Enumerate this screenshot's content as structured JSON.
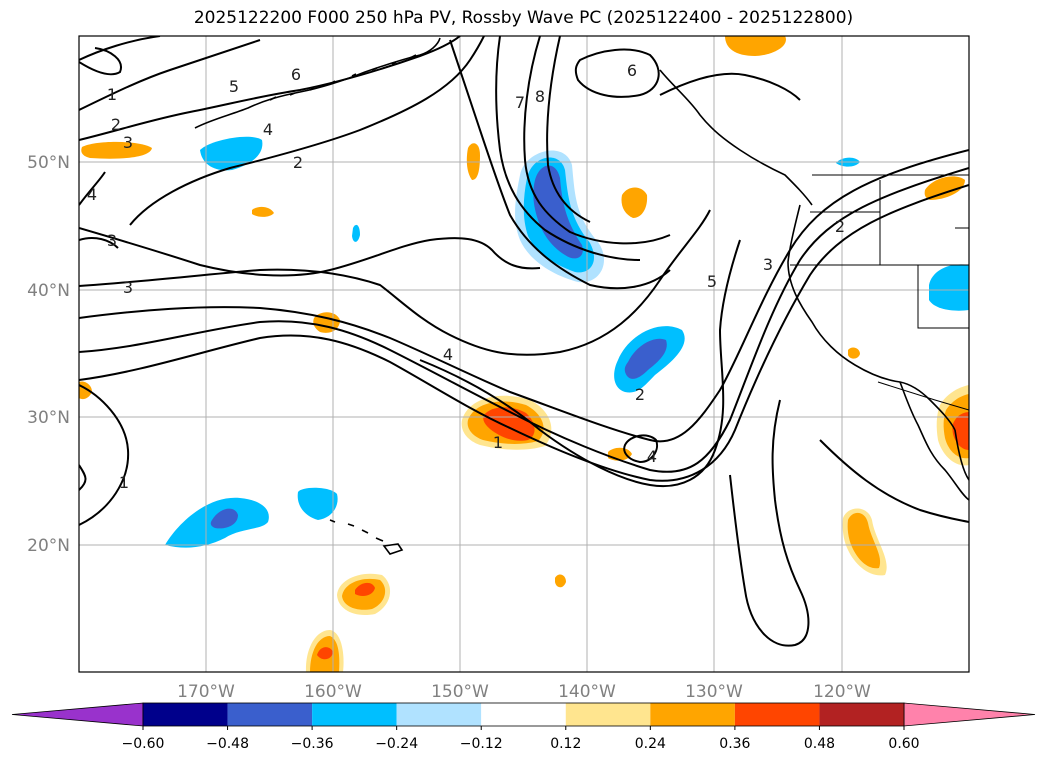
{
  "title": "2025122200 F000 250 hPa PV, Rossby Wave PC (2025122400 - 2025122800)",
  "chart_data": {
    "type": "map",
    "title": "2025122200 F000 250 hPa PV, Rossby Wave PC (2025122400 - 2025122800)",
    "lat_ticks": [
      "50°N",
      "40°N",
      "30°N",
      "20°N"
    ],
    "lon_ticks": [
      "170°W",
      "160°W",
      "150°W",
      "140°W",
      "130°W",
      "120°W"
    ],
    "extent": {
      "lon": [
        -180,
        -110
      ],
      "lat": [
        10,
        60
      ]
    },
    "grid": true,
    "pv_contour_levels": [
      1,
      2,
      3,
      4,
      5,
      6,
      7,
      8
    ],
    "colorbar": {
      "levels": [
        -0.6,
        -0.48,
        -0.36,
        -0.24,
        -0.12,
        0.12,
        0.24,
        0.36,
        0.48,
        0.6
      ],
      "tick_labels": [
        "−0.60",
        "−0.48",
        "−0.36",
        "−0.24",
        "−0.12",
        "0.12",
        "0.24",
        "0.36",
        "0.48",
        "0.60"
      ],
      "colors": [
        "#9932CC",
        "#00008B",
        "#3A5FCD",
        "#00BFFF",
        "#B0E2FF",
        "#FFFFFF",
        "#FFE58F",
        "#FFA500",
        "#FF4500",
        "#B22222",
        "#FF82AB"
      ],
      "extend": "both"
    },
    "pc_features": [
      {
        "sign": "negative",
        "lon": -145,
        "lat": 45,
        "max_abs": 0.5
      },
      {
        "sign": "negative",
        "lon": -135,
        "lat": 35,
        "max_abs": 0.5
      },
      {
        "sign": "negative",
        "lon": -168,
        "lat": 22,
        "max_abs": 0.5
      },
      {
        "sign": "negative",
        "lon": -160,
        "lat": 23,
        "max_abs": 0.4
      },
      {
        "sign": "negative",
        "lon": -168,
        "lat": 51,
        "max_abs": 0.36
      },
      {
        "sign": "negative",
        "lon": -112,
        "lat": 40,
        "max_abs": 0.36
      },
      {
        "sign": "positive",
        "lon": -146,
        "lat": 29,
        "max_abs": 0.5
      },
      {
        "sign": "positive",
        "lon": -112,
        "lat": 29,
        "max_abs": 0.5
      },
      {
        "sign": "positive",
        "lon": -157,
        "lat": 16,
        "max_abs": 0.4
      },
      {
        "sign": "positive",
        "lon": -160,
        "lat": 11,
        "max_abs": 0.4
      },
      {
        "sign": "positive",
        "lon": -117,
        "lat": 20,
        "max_abs": 0.36
      },
      {
        "sign": "positive",
        "lon": -134,
        "lat": 47,
        "max_abs": 0.3
      },
      {
        "sign": "positive",
        "lon": -178,
        "lat": 51,
        "max_abs": 0.3
      },
      {
        "sign": "positive",
        "lon": -124,
        "lat": 60,
        "max_abs": 0.3
      }
    ],
    "contour_labels": [
      {
        "text": "1"
      },
      {
        "text": "2"
      },
      {
        "text": "3"
      },
      {
        "text": "4"
      },
      {
        "text": "5"
      },
      {
        "text": "6"
      },
      {
        "text": "7"
      },
      {
        "text": "8"
      },
      {
        "text": "2"
      },
      {
        "text": "3"
      },
      {
        "text": "4"
      },
      {
        "text": "5"
      },
      {
        "text": "1"
      },
      {
        "text": "4"
      },
      {
        "text": "1"
      },
      {
        "text": "4"
      },
      {
        "text": "2"
      },
      {
        "text": "3"
      },
      {
        "text": "6"
      },
      {
        "text": "3"
      },
      {
        "text": "2"
      }
    ]
  }
}
